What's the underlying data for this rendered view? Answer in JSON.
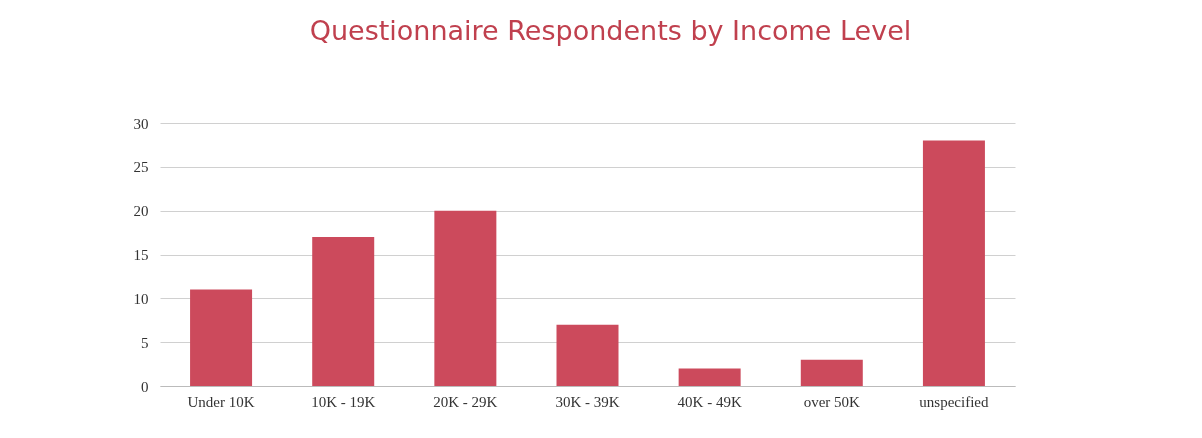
{
  "chart_data": {
    "type": "bar",
    "title": "Questionnaire Respondents by Income Level",
    "categories": [
      "Under 10K",
      "10K - 19K",
      "20K - 29K",
      "30K - 39K",
      "40K - 49K",
      "over 50K",
      "unspecified"
    ],
    "values": [
      11,
      17,
      20,
      7,
      2,
      3,
      28
    ],
    "color": "#cc4a5c",
    "ylim": [
      0,
      30
    ],
    "yticks": [
      0,
      5,
      10,
      15,
      20,
      25,
      30
    ],
    "grid": "y"
  }
}
